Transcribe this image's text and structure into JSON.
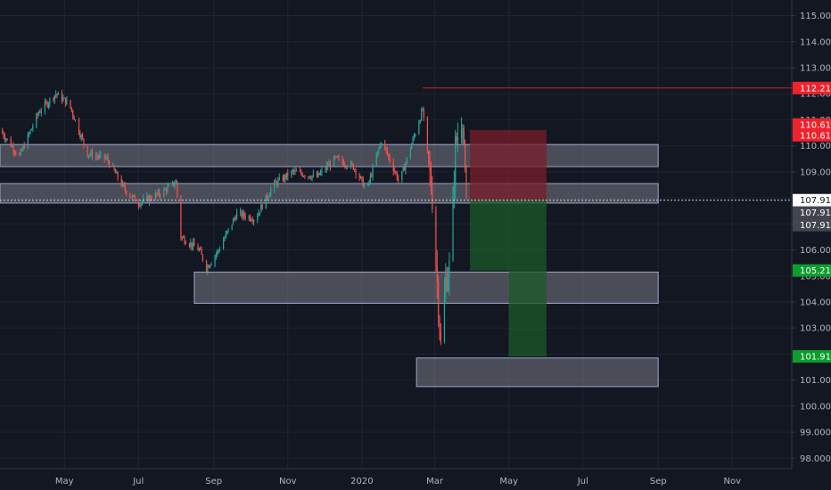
{
  "colors": {
    "background": "#131722",
    "up": "#26a69a",
    "down": "#ef5350",
    "grid": "#1f2433",
    "zone_fill": "#8d8f99",
    "zone_stroke": "#9aa6c8",
    "stop_fill": "#7a1f2b",
    "target_fill": "#1c5a2a",
    "resistance_line": "#d0202a",
    "price_line": "#d1d4dc",
    "badge_red": "#f0222c",
    "badge_green": "#0c9d2c",
    "badge_gray": "#43464f",
    "badge_white": "#ffffff"
  },
  "chart_data": {
    "type": "candlestick",
    "y_axis": {
      "min": 97.6,
      "max": 115.6,
      "ticks": [
        "98.000",
        "99.000",
        "100.000",
        "101.000",
        "102.000",
        "103.000",
        "104.000",
        "105.000",
        "106.000",
        "107.000",
        "108.000",
        "109.000",
        "110.000",
        "111.000",
        "112.000",
        "113.000",
        "114.000",
        "115.000"
      ]
    },
    "x_axis": {
      "start": "2019-03-09",
      "end": "2020-12-20",
      "labels": [
        {
          "date": "2019-05-01",
          "label": "May"
        },
        {
          "date": "2019-07-01",
          "label": "Jul"
        },
        {
          "date": "2019-09-01",
          "label": "Sep"
        },
        {
          "date": "2019-11-01",
          "label": "Nov"
        },
        {
          "date": "2020-01-01",
          "label": "2020"
        },
        {
          "date": "2020-03-01",
          "label": "Mar"
        },
        {
          "date": "2020-05-01",
          "label": "May"
        },
        {
          "date": "2020-07-01",
          "label": "Jul"
        },
        {
          "date": "2020-09-01",
          "label": "Sep"
        },
        {
          "date": "2020-11-01",
          "label": "Nov"
        }
      ]
    },
    "price_path": [
      [
        "2019-03-09",
        110.6
      ],
      [
        "2019-03-25",
        109.6
      ],
      [
        "2019-04-10",
        111.3
      ],
      [
        "2019-04-24",
        112.0
      ],
      [
        "2019-05-05",
        111.6
      ],
      [
        "2019-05-20",
        109.7
      ],
      [
        "2019-06-05",
        109.5
      ],
      [
        "2019-06-20",
        108.3
      ],
      [
        "2019-07-01",
        107.8
      ],
      [
        "2019-07-20",
        108.2
      ],
      [
        "2019-08-01",
        108.6
      ],
      [
        "2019-08-05",
        106.5
      ],
      [
        "2019-08-20",
        106.0
      ],
      [
        "2019-08-26",
        105.3
      ],
      [
        "2019-09-05",
        106.0
      ],
      [
        "2019-09-20",
        107.4
      ],
      [
        "2019-10-05",
        107.2
      ],
      [
        "2019-10-20",
        108.5
      ],
      [
        "2019-11-05",
        109.0
      ],
      [
        "2019-11-25",
        108.8
      ],
      [
        "2019-12-10",
        109.5
      ],
      [
        "2019-12-25",
        109.2
      ],
      [
        "2020-01-05",
        108.3
      ],
      [
        "2020-01-17",
        110.2
      ],
      [
        "2020-02-01",
        108.6
      ],
      [
        "2020-02-20",
        111.4
      ],
      [
        "2020-02-28",
        108.0
      ],
      [
        "2020-03-06",
        102.3
      ],
      [
        "2020-03-10",
        104.8
      ],
      [
        "2020-03-14",
        105.5
      ],
      [
        "2020-03-18",
        110.0
      ],
      [
        "2020-03-24",
        111.2
      ],
      [
        "2020-03-27",
        107.9
      ]
    ],
    "zones": [
      {
        "start": "2019-03-09",
        "end": "2020-09-01",
        "top": 110.05,
        "bottom": 109.2
      },
      {
        "start": "2019-03-09",
        "end": "2020-09-01",
        "top": 108.55,
        "bottom": 107.8
      },
      {
        "start": "2019-08-16",
        "end": "2020-09-01",
        "top": 105.15,
        "bottom": 103.95
      },
      {
        "start": "2020-02-15",
        "end": "2020-09-01",
        "top": 101.85,
        "bottom": 100.75
      }
    ],
    "stop_box": {
      "start": "2020-03-30",
      "end": "2020-06-01",
      "top": 110.61,
      "bottom": 107.91
    },
    "target_box": {
      "start": "2020-03-30",
      "end": "2020-06-01",
      "top": 107.91,
      "bottom": 105.21
    },
    "target_box_2": {
      "start": "2020-05-01",
      "end": "2020-06-01",
      "top": 105.21,
      "bottom": 101.91
    },
    "resistance_line": {
      "start": "2020-02-20",
      "end": "2020-12-20",
      "value": 112.219
    },
    "current_price": 107.91,
    "price_badges": [
      {
        "value": 112.219,
        "label": "112.219",
        "style": "red"
      },
      {
        "value": 110.61,
        "label": "110.610",
        "style": "red",
        "offset": -6
      },
      {
        "value": 110.61,
        "label": "110.610",
        "style": "red",
        "offset": 6
      },
      {
        "value": 107.91,
        "label": "107.910",
        "style": "white"
      },
      {
        "value": 107.91,
        "label": "107.910",
        "style": "gray",
        "offset": 14
      },
      {
        "value": 107.91,
        "label": "107.910",
        "style": "gray",
        "offset": 28
      },
      {
        "value": 105.21,
        "label": "105.210",
        "style": "green"
      },
      {
        "value": 101.91,
        "label": "101.910",
        "style": "green"
      }
    ]
  }
}
